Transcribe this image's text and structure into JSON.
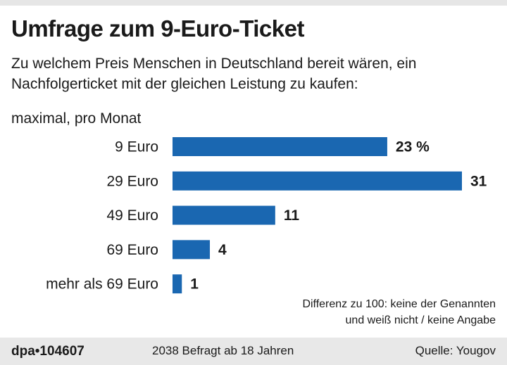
{
  "title": "Umfrage zum 9-Euro-Ticket",
  "subtitle": "Zu welchem Preis Menschen in Deutschland bereit wären, ein Nachfolgerticket mit der gleichen Leistung zu kaufen:",
  "unit_label": "maximal, pro Monat",
  "note_line1": "Differenz zu 100: keine der Genannten",
  "note_line2": "und weiß nicht / keine Angabe",
  "footer": {
    "logo": "dpa•104607",
    "sample": "2038 Befragt ab 18 Jahren",
    "source": "Quelle: Yougov"
  },
  "colors": {
    "bar": "#1a67b1"
  },
  "chart_data": {
    "type": "bar",
    "orientation": "horizontal",
    "categories": [
      "9 Euro",
      "29 Euro",
      "49 Euro",
      "69 Euro",
      "mehr als 69 Euro"
    ],
    "values": [
      23,
      31,
      11,
      4,
      1
    ],
    "value_labels": [
      "23 %",
      "31",
      "11",
      "4",
      "1"
    ],
    "unit": "%",
    "xlim": [
      0,
      31
    ],
    "grid": false
  }
}
